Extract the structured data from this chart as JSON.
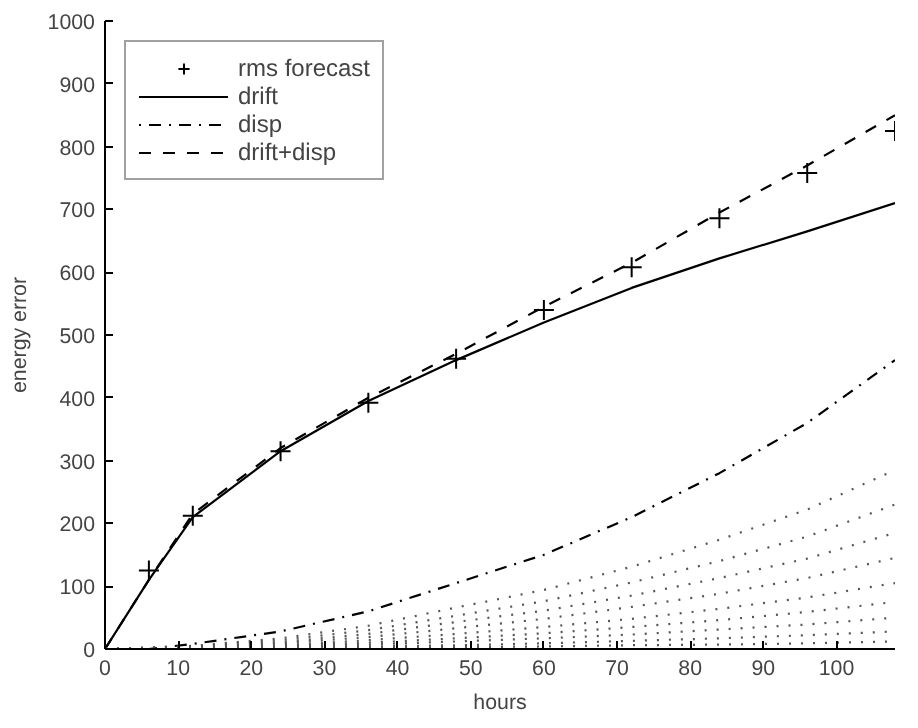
{
  "chart_data": {
    "type": "line",
    "xlabel": "hours",
    "ylabel": "energy error",
    "xlim": [
      0,
      108
    ],
    "ylim": [
      0,
      1000
    ],
    "xticks": [
      0,
      10,
      20,
      30,
      40,
      50,
      60,
      70,
      80,
      90,
      100
    ],
    "yticks": [
      0,
      100,
      200,
      300,
      400,
      500,
      600,
      700,
      800,
      900,
      1000
    ],
    "grid": false,
    "legend": "top left",
    "series": [
      {
        "name": "rms forecast",
        "type": "scatter",
        "marker": "cross",
        "color": "#000000",
        "x": [
          6,
          12,
          24,
          36,
          48,
          60,
          72,
          84,
          96,
          108
        ],
        "values": [
          125,
          212,
          315,
          392,
          462,
          540,
          608,
          686,
          758,
          825
        ]
      },
      {
        "name": "drift",
        "line_style": "solid",
        "color": "#000000",
        "x": [
          0,
          6,
          12,
          24,
          36,
          48,
          60,
          72,
          84,
          96,
          108
        ],
        "values": [
          0,
          110,
          210,
          315,
          395,
          460,
          520,
          575,
          622,
          665,
          710
        ]
      },
      {
        "name": "disp",
        "line_style": "dashdot",
        "color": "#000000",
        "x": [
          0,
          6,
          12,
          24,
          36,
          48,
          60,
          72,
          84,
          96,
          108
        ],
        "values": [
          0,
          0,
          8,
          28,
          60,
          105,
          150,
          210,
          280,
          360,
          460
        ]
      },
      {
        "name": "drift+disp",
        "line_style": "dashed",
        "color": "#000000",
        "x": [
          0,
          6,
          12,
          24,
          36,
          48,
          60,
          72,
          84,
          96,
          108
        ],
        "values": [
          0,
          110,
          215,
          320,
          400,
          470,
          545,
          615,
          695,
          770,
          850
        ]
      },
      {
        "line_style": "dotted",
        "color": "#555555",
        "x": [
          0,
          12,
          24,
          36,
          48,
          60,
          72,
          84,
          96,
          108
        ],
        "values": [
          0,
          5,
          17,
          37,
          66,
          94,
          131,
          174,
          222,
          285
        ]
      },
      {
        "line_style": "dotted",
        "color": "#555555",
        "x": [
          0,
          12,
          24,
          36,
          48,
          60,
          72,
          84,
          96,
          108
        ],
        "values": [
          0,
          4,
          14,
          30,
          53,
          76,
          106,
          140,
          179,
          230
        ]
      },
      {
        "line_style": "dotted",
        "color": "#555555",
        "x": [
          0,
          12,
          24,
          36,
          48,
          60,
          72,
          84,
          96,
          108
        ],
        "values": [
          0,
          3,
          11,
          24,
          43,
          61,
          85,
          113,
          144,
          185
        ]
      },
      {
        "line_style": "dotted",
        "color": "#555555",
        "x": [
          0,
          12,
          24,
          36,
          48,
          60,
          72,
          84,
          96,
          108
        ],
        "values": [
          0,
          2,
          9,
          19,
          33,
          48,
          67,
          88,
          113,
          145
        ]
      },
      {
        "line_style": "dotted",
        "color": "#555555",
        "x": [
          0,
          12,
          24,
          36,
          48,
          60,
          72,
          84,
          96,
          108
        ],
        "values": [
          0,
          2,
          6,
          14,
          24,
          35,
          48,
          64,
          82,
          105
        ]
      },
      {
        "line_style": "dotted",
        "color": "#555555",
        "x": [
          0,
          12,
          24,
          36,
          48,
          60,
          72,
          84,
          96,
          108
        ],
        "values": [
          0,
          1,
          5,
          10,
          17,
          25,
          35,
          46,
          59,
          75
        ]
      },
      {
        "line_style": "dotted",
        "color": "#555555",
        "x": [
          0,
          12,
          24,
          36,
          48,
          60,
          72,
          84,
          96,
          108
        ],
        "values": [
          0,
          1,
          3,
          7,
          12,
          17,
          23,
          31,
          39,
          50
        ]
      },
      {
        "line_style": "dotted",
        "color": "#555555",
        "x": [
          0,
          12,
          24,
          36,
          48,
          60,
          72,
          84,
          96,
          108
        ],
        "values": [
          0,
          0,
          2,
          4,
          6,
          9,
          13,
          17,
          22,
          28
        ]
      },
      {
        "line_style": "dotted",
        "color": "#555555",
        "x": [
          0,
          12,
          24,
          36,
          48,
          60,
          72,
          84,
          96,
          108
        ],
        "values": [
          0,
          0,
          1,
          2,
          3,
          4,
          6,
          7,
          9,
          12
        ]
      }
    ]
  }
}
